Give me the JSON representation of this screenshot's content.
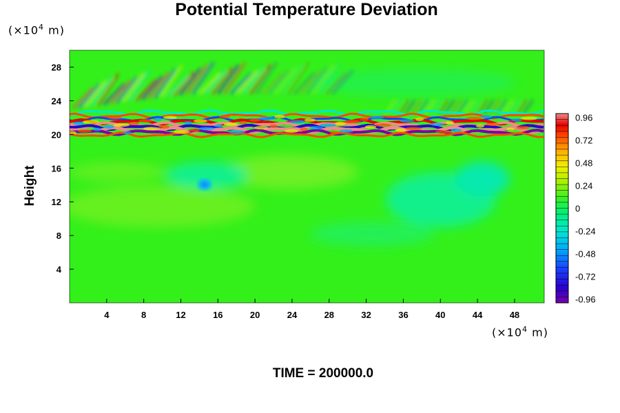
{
  "chart_data": {
    "type": "heatmap",
    "title": "Potential Temperature Deviation",
    "ylabel": "Height",
    "y_unit": "(×10",
    "y_unit_exp": "4",
    "y_unit_tail": " m)",
    "x_unit": "(×10",
    "x_unit_exp": "4",
    "x_unit_tail": " m)",
    "caption": "TIME = 200000.0",
    "xlim": [
      0,
      51.2
    ],
    "ylim": [
      0,
      30
    ],
    "x_ticks": [
      "4",
      "8",
      "12",
      "16",
      "20",
      "24",
      "28",
      "32",
      "36",
      "40",
      "44",
      "48"
    ],
    "x_tick_values": [
      4,
      8,
      12,
      16,
      20,
      24,
      28,
      32,
      36,
      40,
      44,
      48
    ],
    "y_ticks": [
      "4",
      "8",
      "12",
      "16",
      "20",
      "24",
      "28"
    ],
    "y_tick_values": [
      4,
      8,
      12,
      16,
      20,
      24,
      28
    ],
    "colorbar": {
      "min": -1.0,
      "max": 1.0,
      "labels": [
        "0.96",
        "0.72",
        "0.48",
        "0.24",
        "0",
        "-0.24",
        "-0.48",
        "-0.72",
        "-0.96"
      ],
      "label_values": [
        0.96,
        0.72,
        0.48,
        0.24,
        0,
        -0.24,
        -0.48,
        -0.72,
        -0.96
      ],
      "levels": 32
    },
    "colors": {
      "background_field": "#33f01a",
      "max": "#f08a8a",
      "min": "#7a00a8"
    },
    "features": [
      {
        "name": "strong oscillation band",
        "y_range": [
          19.8,
          22.8
        ],
        "value_range": [
          -0.96,
          0.96
        ]
      },
      {
        "name": "gravity wave fan",
        "x_range": [
          0,
          20
        ],
        "y_range": [
          22,
          27
        ]
      },
      {
        "name": "cool eddy",
        "x": 14.8,
        "y": 13.5,
        "value": -0.5
      }
    ]
  }
}
